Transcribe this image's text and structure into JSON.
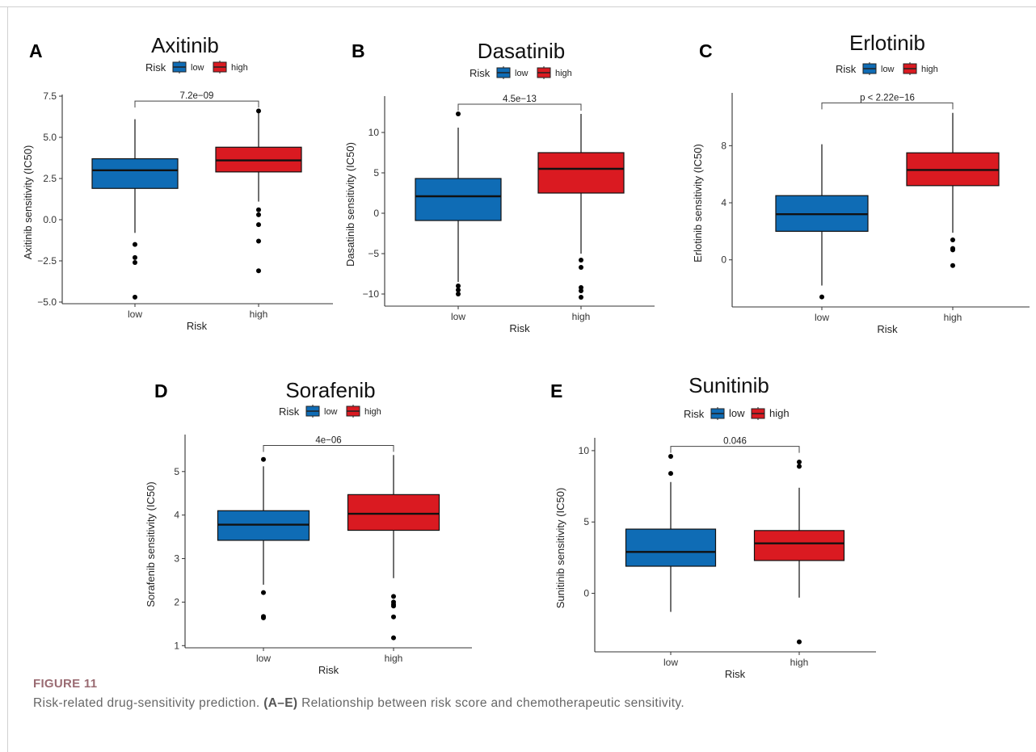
{
  "figure": {
    "label": "FIGURE 11",
    "caption_lead": "Risk-related drug-sensitivity prediction.",
    "caption_ref": "(A–E)",
    "caption_rest": "Relationship between risk score and chemotherapeutic sensitivity."
  },
  "colors": {
    "low": "#0F6CB5",
    "high": "#DA1A21"
  },
  "chart_data": [
    {
      "panel": "A",
      "type": "box",
      "title": "Axitinib",
      "xlabel": "Risk",
      "ylabel": "Axitinib sensitivity (IC50)",
      "legend": {
        "title": "Risk",
        "entries": [
          "low",
          "high"
        ],
        "placement": "top"
      },
      "categories": [
        "low",
        "high"
      ],
      "ylim": [
        -5.1,
        7.6
      ],
      "yticks": [
        7.5,
        5.0,
        2.5,
        0.0,
        -2.5,
        -5.0
      ],
      "ytick_labels": [
        "7.5",
        "5.0",
        "2.5",
        "0.0",
        "−2.5",
        "−5.0"
      ],
      "boxes": [
        {
          "group": "low",
          "q1": 1.9,
          "median": 3.0,
          "q3": 3.7,
          "whisker_low": -0.8,
          "whisker_high": 6.1,
          "outliers": [
            -1.5,
            -2.3,
            -2.6,
            -4.7
          ]
        },
        {
          "group": "high",
          "q1": 2.9,
          "median": 3.6,
          "q3": 4.4,
          "whisker_low": 1.1,
          "whisker_high": 6.6,
          "outliers": [
            6.6,
            0.6,
            0.3,
            -0.3,
            -1.3,
            -3.1
          ]
        }
      ],
      "pvalue": "7.2e−09",
      "bracket_y": 7.2
    },
    {
      "panel": "B",
      "type": "box",
      "title": "Dasatinib",
      "xlabel": "Risk",
      "ylabel": "Dasatinib sensitivity (IC50)",
      "legend": {
        "title": "Risk",
        "entries": [
          "low",
          "high"
        ],
        "placement": "top"
      },
      "categories": [
        "low",
        "high"
      ],
      "ylim": [
        -11.5,
        14.5
      ],
      "yticks": [
        10,
        5,
        0,
        -5,
        -10
      ],
      "ytick_labels": [
        "10",
        "5",
        "0",
        "−5",
        "−10"
      ],
      "boxes": [
        {
          "group": "low",
          "q1": -0.9,
          "median": 2.1,
          "q3": 4.3,
          "whisker_low": -8.5,
          "whisker_high": 10.6,
          "outliers": [
            12.3,
            -9.0,
            -9.5,
            -10.0
          ]
        },
        {
          "group": "high",
          "q1": 2.5,
          "median": 5.5,
          "q3": 7.5,
          "whisker_low": -5.0,
          "whisker_high": 12.3,
          "outliers": [
            -5.8,
            -6.7,
            -9.2,
            -9.6,
            -10.4
          ]
        }
      ],
      "pvalue": "4.5e−13",
      "bracket_y": 13.5
    },
    {
      "panel": "C",
      "type": "box",
      "title": "Erlotinib",
      "xlabel": "Risk",
      "ylabel": "Erlotinib sensitivity (IC50)",
      "legend": {
        "title": "Risk",
        "entries": [
          "low",
          "high"
        ],
        "placement": "top"
      },
      "categories": [
        "low",
        "high"
      ],
      "ylim": [
        -3.3,
        11.7
      ],
      "yticks": [
        8,
        4,
        0
      ],
      "ytick_labels": [
        "8",
        "4",
        "0"
      ],
      "boxes": [
        {
          "group": "low",
          "q1": 2.0,
          "median": 3.2,
          "q3": 4.5,
          "whisker_low": -1.8,
          "whisker_high": 8.1,
          "outliers": [
            -2.6
          ]
        },
        {
          "group": "high",
          "q1": 5.2,
          "median": 6.3,
          "q3": 7.5,
          "whisker_low": 1.9,
          "whisker_high": 10.3,
          "outliers": [
            1.4,
            0.8,
            0.7,
            -0.4
          ]
        }
      ],
      "pvalue": "p < 2.22e−16",
      "bracket_y": 11.0
    },
    {
      "panel": "D",
      "type": "box",
      "title": "Sorafenib",
      "xlabel": "Risk",
      "ylabel": "Sorafenib sensitivity (IC50)",
      "legend": {
        "title": "Risk",
        "entries": [
          "low",
          "high"
        ],
        "placement": "top"
      },
      "categories": [
        "low",
        "high"
      ],
      "ylim": [
        0.95,
        5.85
      ],
      "yticks": [
        5,
        4,
        3,
        2,
        1
      ],
      "ytick_labels": [
        "5",
        "4",
        "3",
        "2",
        "1"
      ],
      "boxes": [
        {
          "group": "low",
          "q1": 3.42,
          "median": 3.78,
          "q3": 4.1,
          "whisker_low": 2.4,
          "whisker_high": 5.12,
          "outliers": [
            5.28,
            2.22,
            1.67,
            1.64
          ]
        },
        {
          "group": "high",
          "q1": 3.65,
          "median": 4.03,
          "q3": 4.47,
          "whisker_low": 2.55,
          "whisker_high": 5.38,
          "outliers": [
            2.13,
            2.0,
            1.95,
            1.91,
            1.66,
            1.18
          ]
        }
      ],
      "pvalue": "4e−06",
      "bracket_y": 5.6
    },
    {
      "panel": "E",
      "type": "box",
      "title": "Sunitinib",
      "xlabel": "Risk",
      "ylabel": "Sunitinib sensitivity (IC50)",
      "legend": {
        "title": "Risk",
        "entries": [
          "low",
          "high"
        ],
        "placement": "top"
      },
      "categories": [
        "low",
        "high"
      ],
      "ylim": [
        -4.1,
        10.9
      ],
      "yticks": [
        10,
        5,
        0
      ],
      "ytick_labels": [
        "10",
        "5",
        "0"
      ],
      "boxes": [
        {
          "group": "low",
          "q1": 1.9,
          "median": 2.9,
          "q3": 4.5,
          "whisker_low": -1.3,
          "whisker_high": 7.8,
          "outliers": [
            9.6,
            8.4
          ]
        },
        {
          "group": "high",
          "q1": 2.3,
          "median": 3.5,
          "q3": 4.4,
          "whisker_low": -0.3,
          "whisker_high": 7.4,
          "outliers": [
            9.2,
            8.9,
            -3.4
          ]
        }
      ],
      "pvalue": "0.046",
      "bracket_y": 10.3
    }
  ]
}
